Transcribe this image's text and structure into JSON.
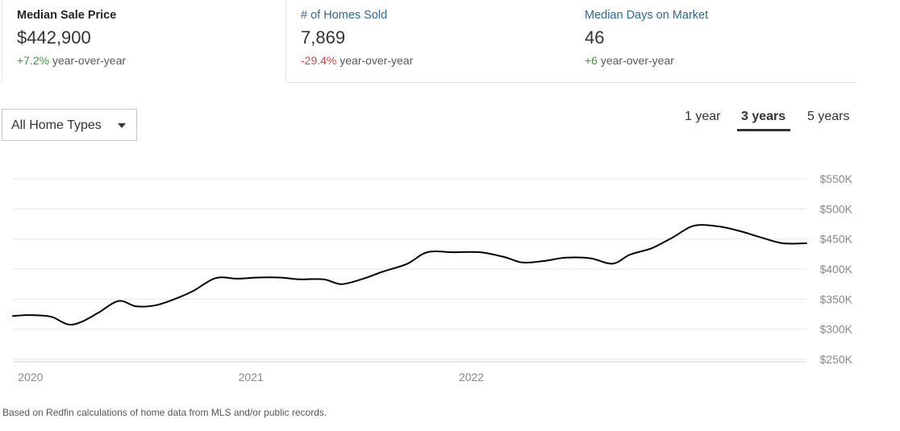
{
  "stats": [
    {
      "label": "Median Sale Price",
      "value": "$442,900",
      "change": "+7.2%",
      "change_suffix": "year-over-year"
    },
    {
      "label": "# of Homes Sold",
      "value": "7,869",
      "change": "-29.4%",
      "change_suffix": "year-over-year"
    },
    {
      "label": "Median Days on Market",
      "value": "46",
      "change": "+6",
      "change_suffix": "year-over-year"
    }
  ],
  "colors": {
    "positive": "#3c9d3c",
    "negative": "#d64545",
    "link": "#2e6a8e",
    "line": "#000000"
  },
  "home_type_select": {
    "value": "All Home Types",
    "icon": "caret-down-icon"
  },
  "time_ranges": [
    {
      "label": "1 year",
      "selected": false
    },
    {
      "label": "3 years",
      "selected": true
    },
    {
      "label": "5 years",
      "selected": false
    }
  ],
  "chart_data": {
    "type": "line",
    "series": [
      {
        "points": [
          [
            2019.92,
            322
          ],
          [
            2019.98,
            323.5
          ],
          [
            2020.04,
            323
          ],
          [
            2020.1,
            320
          ],
          [
            2020.17,
            308
          ],
          [
            2020.23,
            312
          ],
          [
            2020.31,
            328
          ],
          [
            2020.4,
            347
          ],
          [
            2020.48,
            338
          ],
          [
            2020.57,
            340
          ],
          [
            2020.66,
            351
          ],
          [
            2020.74,
            364
          ],
          [
            2020.84,
            385
          ],
          [
            2020.94,
            384
          ],
          [
            2021.03,
            386
          ],
          [
            2021.13,
            386
          ],
          [
            2021.22,
            383
          ],
          [
            2021.33,
            383
          ],
          [
            2021.41,
            375
          ],
          [
            2021.51,
            384
          ],
          [
            2021.6,
            396
          ],
          [
            2021.71,
            409
          ],
          [
            2021.8,
            428
          ],
          [
            2021.92,
            428
          ],
          [
            2022.04,
            428
          ],
          [
            2022.15,
            420
          ],
          [
            2022.23,
            411
          ],
          [
            2022.32,
            413
          ],
          [
            2022.43,
            419
          ],
          [
            2022.54,
            418
          ],
          [
            2022.64,
            409
          ],
          [
            2022.72,
            424
          ],
          [
            2022.82,
            435
          ],
          [
            2022.91,
            452
          ],
          [
            2023.01,
            472
          ],
          [
            2023.12,
            471
          ],
          [
            2023.22,
            463
          ],
          [
            2023.31,
            453
          ],
          [
            2023.41,
            443
          ],
          [
            2023.52,
            442.9
          ]
        ]
      }
    ],
    "y_ticks": [
      "$550K",
      "$500K",
      "$450K",
      "$400K",
      "$350K",
      "$300K",
      "$250K"
    ],
    "y_tick_values": [
      550,
      500,
      450,
      400,
      350,
      300,
      250
    ],
    "x_ticks": [
      {
        "label": "2020",
        "value": 2020
      },
      {
        "label": "2021",
        "value": 2021
      },
      {
        "label": "2022",
        "value": 2022
      }
    ],
    "ylim": [
      250,
      550
    ],
    "xlim": [
      2019.92,
      2023.52
    ],
    "y_axis_position": "right",
    "grid": true,
    "legend": "none"
  },
  "footnote": "Based on Redfin calculations of home data from MLS and/or public records."
}
